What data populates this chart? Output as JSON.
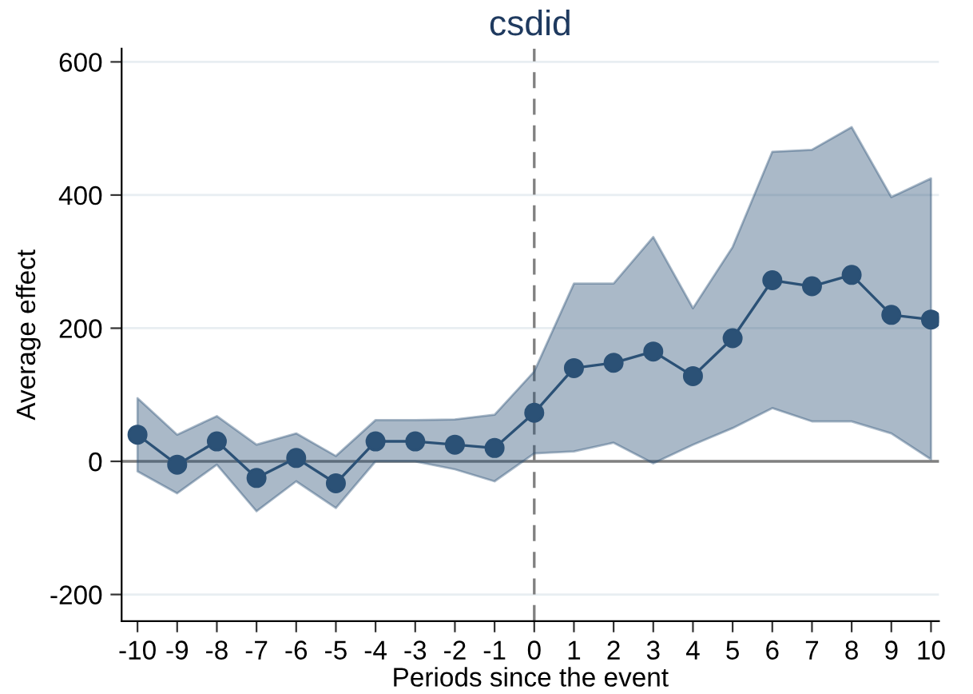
{
  "chart_data": {
    "type": "line",
    "title": "csdid",
    "xlabel": "Periods since the event",
    "ylabel": "Average effect",
    "x": [
      -10,
      -9,
      -8,
      -7,
      -6,
      -5,
      -4,
      -3,
      -2,
      -1,
      0,
      1,
      2,
      3,
      4,
      5,
      6,
      7,
      8,
      9,
      10
    ],
    "series": [
      {
        "color": "#2b5176",
        "values": [
          40,
          -5,
          30,
          -25,
          5,
          -33,
          30,
          30,
          25,
          20,
          73,
          140,
          148,
          165,
          128,
          185,
          272,
          263,
          280,
          220,
          213
        ],
        "lower": [
          -15,
          -48,
          -5,
          -75,
          -30,
          -70,
          0,
          0,
          -12,
          -30,
          12,
          15,
          28,
          -3,
          25,
          50,
          80,
          60,
          60,
          42,
          3
        ],
        "upper": [
          95,
          40,
          68,
          25,
          42,
          8,
          62,
          62,
          63,
          70,
          135,
          267,
          267,
          337,
          230,
          322,
          465,
          468,
          502,
          397,
          425
        ]
      }
    ],
    "xlim": [
      -10.4,
      10.2
    ],
    "ylim": [
      -240,
      620
    ],
    "xticks": [
      -10,
      -9,
      -8,
      -7,
      -6,
      -5,
      -4,
      -3,
      -2,
      -1,
      0,
      1,
      2,
      3,
      4,
      5,
      6,
      7,
      8,
      9,
      10
    ],
    "yticks": [
      -200,
      0,
      200,
      400,
      600
    ],
    "grid": "y",
    "marker": "circle",
    "line_style": "solid",
    "legend": false,
    "ref_lines": [
      {
        "axis": "y",
        "value": 0,
        "color": "#808080",
        "line_style": "solid"
      },
      {
        "axis": "x",
        "value": 0,
        "color": "#808080",
        "line_style": "dashed"
      }
    ]
  }
}
